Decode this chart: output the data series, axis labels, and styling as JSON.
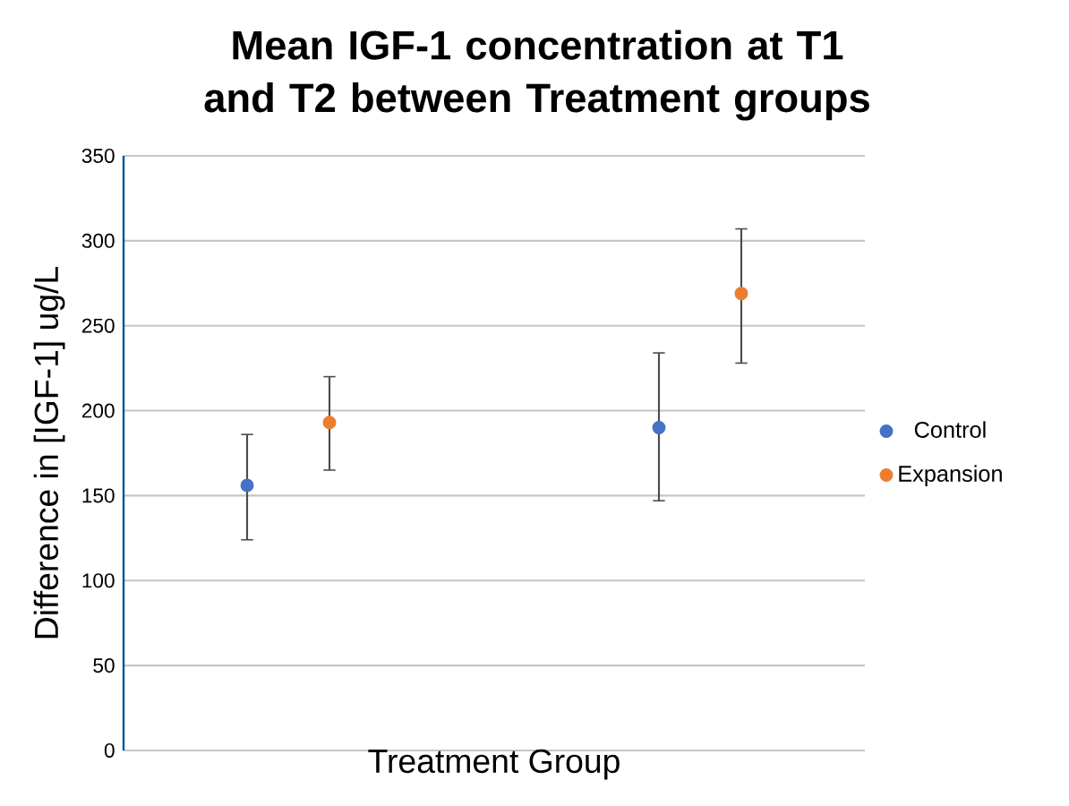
{
  "chart_data": {
    "type": "scatter",
    "title": "**Mean IGF-1 concentration at T1 and T2 between Treatment groups**",
    "xlabel": "Treatment Group",
    "ylabel": "Difference in [IGF-1] ug/L",
    "categories": [
      null,
      null,
      null,
      null,
      null,
      null,
      null,
      null,
      null
    ],
    "ylim": [
      0,
      350
    ],
    "yticks": [
      0,
      50,
      100,
      150,
      200,
      250,
      300,
      350
    ],
    "tick_labels": "y",
    "grid": "y",
    "legend": "right",
    "series": [
      {
        "name": "Control",
        "color": "#4472c4",
        "values": [
          null,
          156,
          null,
          null,
          null,
          null,
          190,
          null,
          null
        ],
        "errors": [
          null,
          [
            124,
            186
          ],
          null,
          null,
          null,
          null,
          [
            147,
            234
          ],
          null,
          null
        ]
      },
      {
        "name": "Expansion",
        "color": "#ed7d31",
        "values": [
          null,
          null,
          193,
          null,
          null,
          null,
          null,
          269,
          null
        ],
        "errors": [
          null,
          null,
          [
            165,
            220
          ],
          null,
          null,
          null,
          null,
          [
            228,
            307
          ],
          null
        ]
      }
    ]
  }
}
